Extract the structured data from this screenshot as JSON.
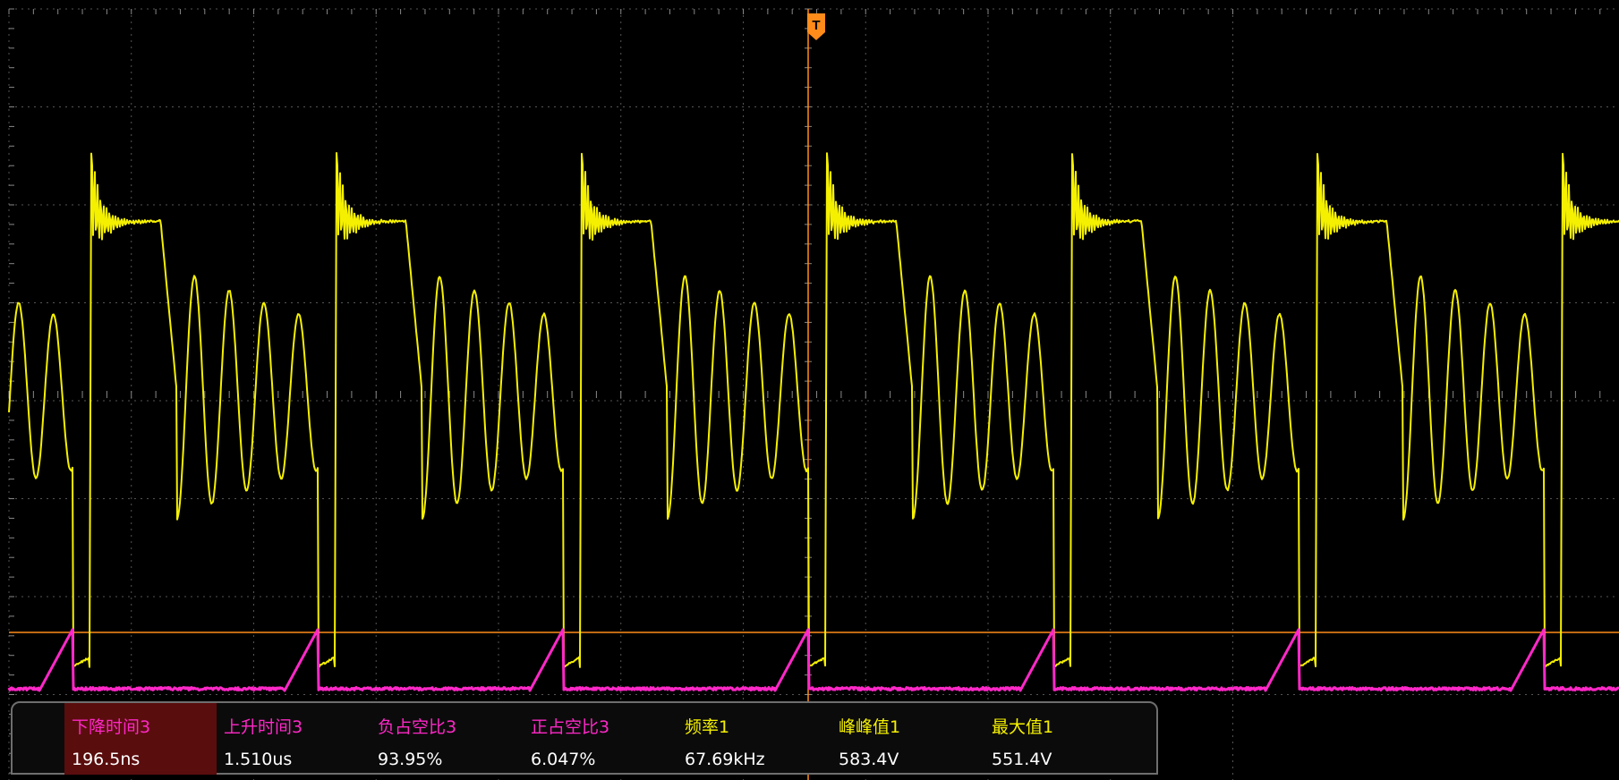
{
  "screen": {
    "colors": {
      "background": "#000000",
      "grid": "#6a6a6a",
      "channel1": "#f5f000",
      "channel3": "#ff28c8",
      "trigger": "#ff8c1a",
      "panel_border": "#6e6e6e",
      "selected_bg": "#5a0d0d"
    },
    "grid": {
      "divisions_x": 10,
      "divisions_y": 8
    }
  },
  "waveforms": {
    "ch1": {
      "name": "channel-1",
      "color": "#f5f000",
      "frequency": "67.69kHz"
    },
    "ch3": {
      "name": "channel-3",
      "color": "#ff28c8"
    }
  },
  "trigger": {
    "label": "T",
    "color": "#ff8c1a"
  },
  "measurements": [
    {
      "name": "下降时间3",
      "value": "196.5ns",
      "color": "#ff28c8",
      "selected": true
    },
    {
      "name": "上升时间3",
      "value": "1.510us",
      "color": "#ff28c8",
      "selected": false
    },
    {
      "name": "负占空比3",
      "value": "93.95%",
      "color": "#ff28c8",
      "selected": false
    },
    {
      "name": "正占空比3",
      "value": "6.047%",
      "color": "#ff28c8",
      "selected": false
    },
    {
      "name": "频率1",
      "value": "67.69kHz",
      "color": "#f5f000",
      "selected": false
    },
    {
      "name": "峰峰值1",
      "value": "583.4V",
      "color": "#f5f000",
      "selected": false
    },
    {
      "name": "最大值1",
      "value": "551.4V",
      "color": "#f5f000",
      "selected": false
    }
  ]
}
